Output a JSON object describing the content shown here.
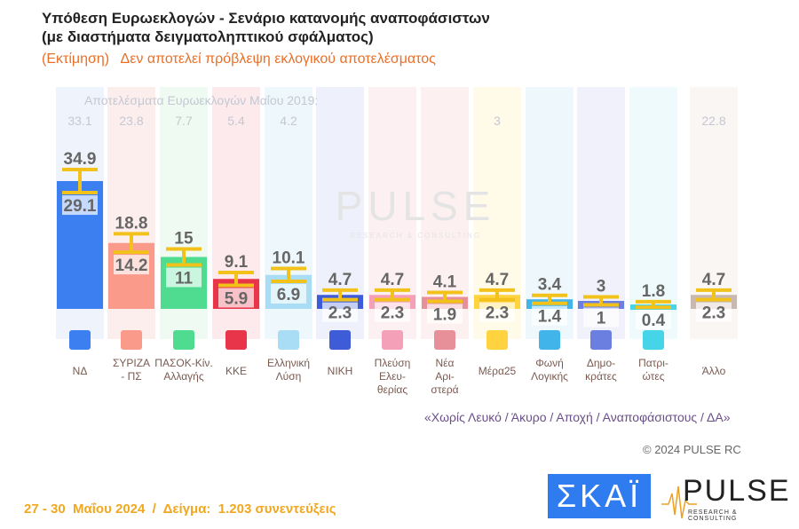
{
  "header": {
    "title_line1": "Υπόθεση Ευρωεκλογών - Σενάριο κατανομής αναποφάσιστων",
    "title_line2": "(με διαστήματα δειγματοληπτικού σφάλματος)",
    "subtitle": "(Εκτίμηση)   Δεν αποτελεί πρόβλεψη εκλογικού αποτελέσματος"
  },
  "chart_data": {
    "type": "bar",
    "subtitle_2019": "Αποτελέσματα Ευρωεκλογών Μαΐου 2019:",
    "categories": [
      "ΝΔ",
      "ΣΥΡΙΖΑ - ΠΣ",
      "ΠΑΣΟΚ-Κίν. Αλλαγής",
      "ΚΚΕ",
      "Ελληνική Λύση",
      "ΝΙΚΗ",
      "Πλεύση Ελευ-θερίας",
      "Νέα Αρι-στερά",
      "Μέρα25",
      "Φωνή Λογικής",
      "Δημο-κράτες",
      "Πατρι-ώτες",
      "Άλλο"
    ],
    "category_lines": [
      [
        "ΝΔ"
      ],
      [
        "ΣΥΡΙΖΑ",
        "- ΠΣ"
      ],
      [
        "ΠΑΣΟΚ-Κίν.",
        "Αλλαγής"
      ],
      [
        "ΚΚΕ"
      ],
      [
        "Ελληνική",
        "Λύση"
      ],
      [
        "ΝΙΚΗ"
      ],
      [
        "Πλεύση",
        "Ελευ-",
        "θερίας"
      ],
      [
        "Νέα",
        "Αρι-",
        "στερά"
      ],
      [
        "Μέρα25"
      ],
      [
        "Φωνή",
        "Λογικής"
      ],
      [
        "Δημο-",
        "κράτες"
      ],
      [
        "Πατρι-",
        "ώτες"
      ],
      [
        "Άλλο"
      ]
    ],
    "high": [
      34.9,
      18.8,
      15,
      9.1,
      10.1,
      4.7,
      4.7,
      4.1,
      4.7,
      3.4,
      3,
      1.8,
      4.7
    ],
    "low": [
      29.1,
      14.2,
      11,
      5.9,
      6.9,
      2.3,
      2.3,
      1.9,
      2.3,
      1.4,
      1,
      0.4,
      2.3
    ],
    "high_labels": [
      "34.9",
      "18.8",
      "15",
      "9.1",
      "10.1",
      "4.7",
      "4.7",
      "4.1",
      "4.7",
      "3.4",
      "3",
      "1.8",
      "4.7"
    ],
    "low_labels": [
      "29.1",
      "14.2",
      "11",
      "5.9",
      "6.9",
      "2.3",
      "2.3",
      "1.9",
      "2.3",
      "1.4",
      "1",
      "0.4",
      "2.3"
    ],
    "results_2019": [
      "33.1",
      "23.8",
      "7.7",
      "5.4",
      "4.2",
      "",
      "",
      "",
      "3",
      "",
      "",
      "",
      "22.8"
    ],
    "colors": [
      "#3b7ff0",
      "#f99a8a",
      "#4fdc90",
      "#e8354a",
      "#a9dcf5",
      "#3e5bd8",
      "#f4a0b8",
      "#e8909a",
      "#ffd23f",
      "#41b4ea",
      "#6a7fe0",
      "#46d4e8",
      "#c8b8b0"
    ],
    "bg_colors": [
      "#eef3fc",
      "#fdeeee",
      "#eefaf2",
      "#fdeaec",
      "#eef8fc",
      "#eef1fb",
      "#fdf0f3",
      "#fdf0f0",
      "#fffbe8",
      "#eef7fc",
      "#f0f1fb",
      "#eefafc",
      "#faf6f4"
    ],
    "error_bar_color": "#f2c21b",
    "ylim": [
      0,
      40
    ]
  },
  "logos": [
    "nd-logo",
    "syriza-logo",
    "pasok-logo",
    "kke-logo",
    "elliniki-lysi-logo",
    "niki-logo",
    "plefsi-logo",
    "nea-aristera-logo",
    "mera25-logo",
    "foni-logikis-logo",
    "dimokrates-logo",
    "patriotes-logo",
    ""
  ],
  "watermark": {
    "text": "PULSE",
    "sub": "RESEARCH & CONSULTING"
  },
  "footer": {
    "note": "«Χωρίς Λευκό / Άκυρο / Αποχή / Αναποφάσιστους / ΔΑ»",
    "copyright": "© 2024 PULSE RC",
    "date_sample": "27 - 30  Μαΐου 2024  /  Δείγμα:  1.203 συνεντεύξεις",
    "skai_logo": "ΣΚΑΪ",
    "pulse_logo": "PULSE",
    "pulse_sub": "RESEARCH & CONSULTING"
  }
}
